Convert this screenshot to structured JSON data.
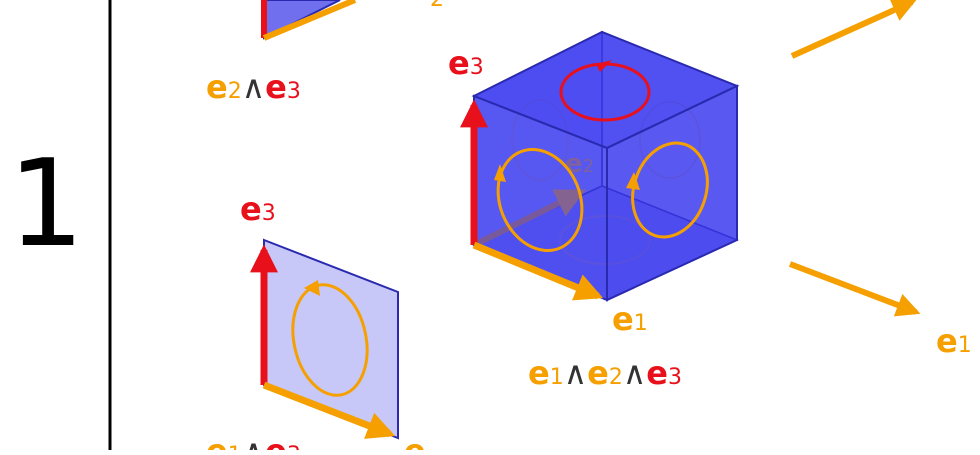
{
  "grade_label": "1",
  "vector_symbol": "e",
  "wedge_symbol": "∧",
  "indices": {
    "one": "1",
    "two": "2",
    "three": "3"
  },
  "colors": {
    "e1": "#f5a000",
    "e2": "#f5a000",
    "e3": "#e8101a",
    "solid_face": "#3b3bf0",
    "plane_face": "#c8c8f8",
    "edge": "#2a2ab0",
    "circulation": "#f5a000",
    "circulation_top": "#e8101a",
    "axis": "#000000"
  },
  "icons": {
    "trivector": "cube-volume-icon",
    "bivector": "oriented-plane-icon",
    "vector": "arrow-icon"
  }
}
